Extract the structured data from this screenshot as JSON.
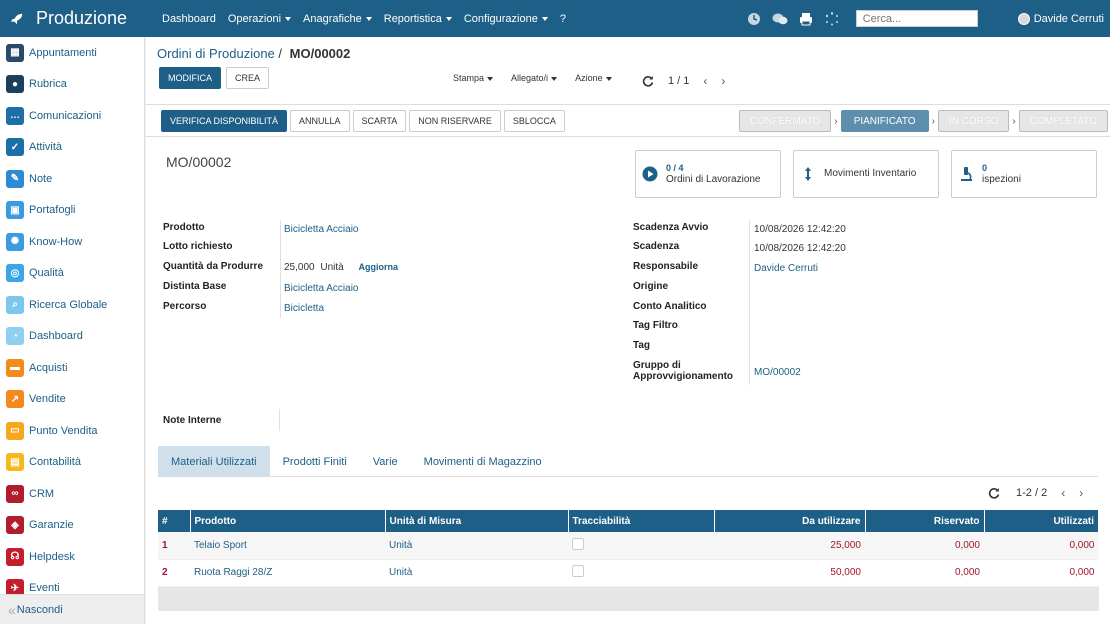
{
  "app": {
    "title": "Produzione",
    "menu": [
      {
        "label": "Dashboard",
        "caret": false
      },
      {
        "label": "Operazioni",
        "caret": true
      },
      {
        "label": "Anagrafiche",
        "caret": true
      },
      {
        "label": "Reportistica",
        "caret": true
      },
      {
        "label": "Configurazione",
        "caret": true
      },
      {
        "label": "?",
        "caret": false
      }
    ],
    "search_placeholder": "Cerca...",
    "user_name": "Davide Cerruti"
  },
  "sidebar": {
    "items": [
      {
        "label": "Appuntamenti",
        "icon": "calendar-icon",
        "color": "#2b4a6b"
      },
      {
        "label": "Rubrica",
        "icon": "contacts-icon",
        "color": "#1d3f5e"
      },
      {
        "label": "Comunicazioni",
        "icon": "chat-icon",
        "color": "#1d6fa8"
      },
      {
        "label": "Attività",
        "icon": "check-icon",
        "color": "#1d6fa8"
      },
      {
        "label": "Note",
        "icon": "note-icon",
        "color": "#2e8bd3"
      },
      {
        "label": "Portafogli",
        "icon": "wallet-icon",
        "color": "#3a9be0"
      },
      {
        "label": "Know-How",
        "icon": "brain-icon",
        "color": "#3a9be0"
      },
      {
        "label": "Qualità",
        "icon": "quality-icon",
        "color": "#3aa6e6"
      },
      {
        "label": "Ricerca Globale",
        "icon": "search-icon",
        "color": "#7cc6f0"
      },
      {
        "label": "Dashboard",
        "icon": "dashboard-icon",
        "color": "#8fd0f2"
      },
      {
        "label": "Acquisti",
        "icon": "purchase-icon",
        "color": "#f28a1e"
      },
      {
        "label": "Vendite",
        "icon": "sales-icon",
        "color": "#f28a1e"
      },
      {
        "label": "Punto Vendita",
        "icon": "pos-icon",
        "color": "#f5a81d"
      },
      {
        "label": "Contabilità",
        "icon": "accounting-icon",
        "color": "#f5b81d"
      },
      {
        "label": "CRM",
        "icon": "handshake-icon",
        "color": "#b01e2e"
      },
      {
        "label": "Garanzie",
        "icon": "shield-icon",
        "color": "#b01e2e"
      },
      {
        "label": "Helpdesk",
        "icon": "headset-icon",
        "color": "#c41e2e"
      },
      {
        "label": "Eventi",
        "icon": "event-icon",
        "color": "#c41e2e"
      }
    ],
    "hide_label": "Nascondi"
  },
  "control_panel": {
    "breadcrumb_parent": "Ordini di Produzione",
    "breadcrumb_sep": "/",
    "breadcrumb_current": "MO/00002",
    "edit_label": "MODIFICA",
    "create_label": "CREA",
    "print_label": "Stampa",
    "attach_label": "Allegato/i",
    "action_label": "Azione",
    "pager": "1 / 1"
  },
  "header_buttons": [
    "VERIFICA DISPONIBILITÀ",
    "ANNULLA",
    "SCARTA",
    "NON RISERVARE",
    "SBLOCCA"
  ],
  "stages": [
    {
      "label": "CONFERMATO",
      "state": "done"
    },
    {
      "label": "PIANIFICATO",
      "state": "active"
    },
    {
      "label": "IN CORSO",
      "state": "future"
    },
    {
      "label": "COMPLETATO",
      "state": "future"
    }
  ],
  "record": {
    "name": "MO/00002",
    "smart_buttons": {
      "workorders_count": "0 / 4",
      "workorders_label": "Ordini di Lavorazione",
      "moves_label": "Movimenti Inventario",
      "inspections_count": "0",
      "inspections_label": "ispezioni"
    },
    "left_fields": {
      "product_label": "Prodotto",
      "product_value": "Bicicletta Acciaio",
      "lot_label": "Lotto richiesto",
      "lot_value": "",
      "qty_label": "Quantità da Produrre",
      "qty_value": "25,000",
      "qty_uom": "Unità",
      "qty_update": "Aggiorna",
      "bom_label": "Distinta Base",
      "bom_value": "Bicicletta Acciaio",
      "routing_label": "Percorso",
      "routing_value": "Bicicletta"
    },
    "right_fields": {
      "start_label": "Scadenza Avvio",
      "start_value": "10/08/2026 12:42:20",
      "deadline_label": "Scadenza",
      "deadline_value": "10/08/2026 12:42:20",
      "responsible_label": "Responsabile",
      "responsible_value": "Davide Cerruti",
      "origin_label": "Origine",
      "analytic_label": "Conto Analitico",
      "tagfilter_label": "Tag Filtro",
      "tag_label": "Tag",
      "procgroup_label_1": "Gruppo di",
      "procgroup_label_2": "Approvvigionamento",
      "procgroup_value": "MO/00002"
    },
    "notes_label": "Note Interne"
  },
  "tabs": [
    "Materiali Utilizzati",
    "Prodotti Finiti",
    "Varie",
    "Movimenti di Magazzino"
  ],
  "table": {
    "pager": "1-2 / 2",
    "columns": [
      "#",
      "Prodotto",
      "Unità di Misura",
      "Tracciabilità",
      "Da utilizzare",
      "Riservato",
      "Utilizzati"
    ],
    "rows": [
      {
        "idx": "1",
        "product": "Telaio Sport",
        "uom": "Unità",
        "to_use": "25,000",
        "reserved": "0,000",
        "used": "0,000"
      },
      {
        "idx": "2",
        "product": "Ruota Raggi 28/Z",
        "uom": "Unità",
        "to_use": "50,000",
        "reserved": "0,000",
        "used": "0,000"
      }
    ]
  }
}
